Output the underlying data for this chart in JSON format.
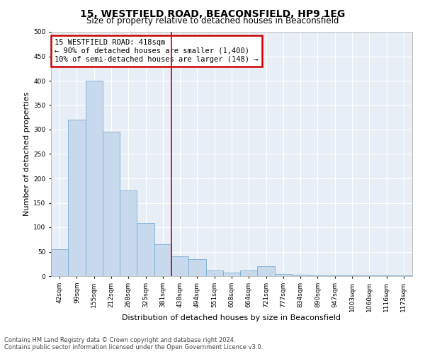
{
  "title": "15, WESTFIELD ROAD, BEACONSFIELD, HP9 1EG",
  "subtitle": "Size of property relative to detached houses in Beaconsfield",
  "xlabel": "Distribution of detached houses by size in Beaconsfield",
  "ylabel": "Number of detached properties",
  "footer_line1": "Contains HM Land Registry data © Crown copyright and database right 2024.",
  "footer_line2": "Contains public sector information licensed under the Open Government Licence v3.0.",
  "annotation_title": "15 WESTFIELD ROAD: 418sqm",
  "annotation_line1": "← 90% of detached houses are smaller (1,400)",
  "annotation_line2": "10% of semi-detached houses are larger (148) →",
  "bin_labels": [
    "42sqm",
    "99sqm",
    "155sqm",
    "212sqm",
    "268sqm",
    "325sqm",
    "381sqm",
    "438sqm",
    "494sqm",
    "551sqm",
    "608sqm",
    "664sqm",
    "721sqm",
    "777sqm",
    "834sqm",
    "890sqm",
    "947sqm",
    "1003sqm",
    "1060sqm",
    "1116sqm",
    "1173sqm"
  ],
  "bar_values": [
    55,
    320,
    400,
    295,
    175,
    108,
    65,
    40,
    35,
    12,
    7,
    12,
    20,
    5,
    3,
    2,
    1,
    1,
    1,
    1,
    1
  ],
  "bar_color": "#c8d9ee",
  "bar_edge_color": "#7aadd4",
  "vline_color": "#cc0000",
  "vline_x": 7,
  "ylim": [
    0,
    500
  ],
  "yticks": [
    0,
    50,
    100,
    150,
    200,
    250,
    300,
    350,
    400,
    450,
    500
  ],
  "annotation_box_color": "#cc0000",
  "bg_color": "#e8eef5",
  "title_fontsize": 10,
  "subtitle_fontsize": 8.5,
  "axis_label_fontsize": 8,
  "tick_fontsize": 6.5,
  "footer_fontsize": 6,
  "annotation_fontsize": 7.5
}
